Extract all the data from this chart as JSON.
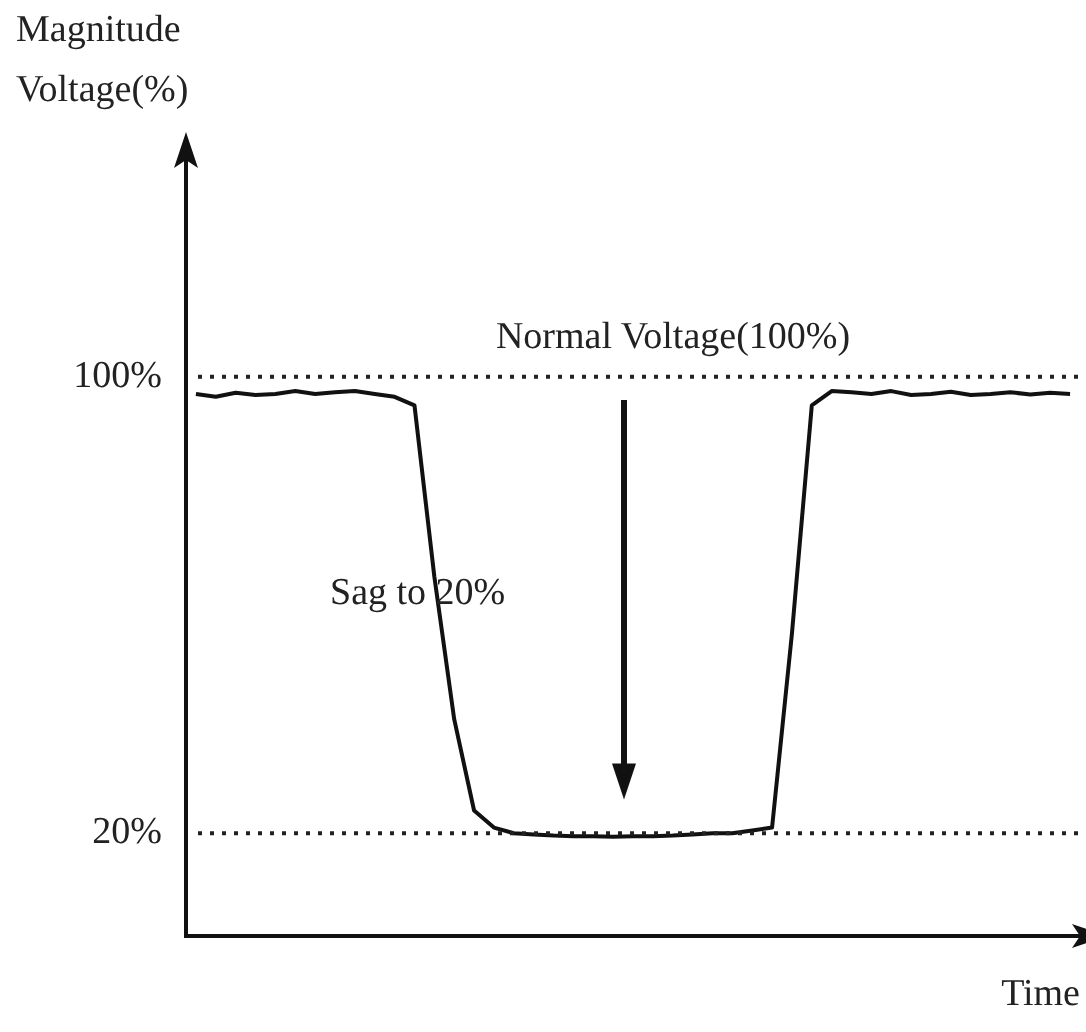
{
  "chart_data": {
    "type": "line",
    "ylabel": "Magnitude\nVoltage(%)",
    "xlabel": "Time",
    "categories": [
      null,
      null,
      null,
      null,
      null,
      null,
      null,
      null,
      null,
      null,
      null,
      null,
      null,
      null,
      null,
      null,
      null,
      null,
      null,
      null,
      null,
      null,
      null,
      null,
      null,
      null,
      null,
      null,
      null,
      null,
      null,
      null,
      null,
      null,
      null,
      null,
      null,
      null,
      null,
      null,
      null,
      null,
      null,
      null,
      null
    ],
    "series": [
      {
        "color": "#111111",
        "values": [
          97,
          96.5,
          97.2,
          96.8,
          97,
          97.5,
          97,
          97.3,
          97.5,
          97,
          96.5,
          95,
          65,
          40,
          24,
          21,
          20,
          19.8,
          19.6,
          19.5,
          19.5,
          19.4,
          19.5,
          19.5,
          19.6,
          19.8,
          20,
          20,
          20.5,
          21,
          55,
          95,
          97.5,
          97.3,
          97,
          97.5,
          96.8,
          97,
          97.4,
          96.8,
          97,
          97.3,
          96.9,
          97.2,
          97
        ]
      }
    ],
    "ylim": [
      2,
      138
    ],
    "yticks": [
      {
        "value": 100,
        "label": "100%"
      },
      {
        "value": 20,
        "label": "20%"
      }
    ],
    "ref_lines": [
      {
        "axis": "y",
        "value": 100,
        "label": "Normal Voltage(100%)",
        "line_style": "dotted"
      },
      {
        "axis": "y",
        "value": 20,
        "line_style": "dotted"
      }
    ],
    "annotations": [
      "Sag to 20%"
    ],
    "grid": false,
    "legend": false,
    "marker": "none",
    "line_style": "solid",
    "tick_labels": "y"
  }
}
